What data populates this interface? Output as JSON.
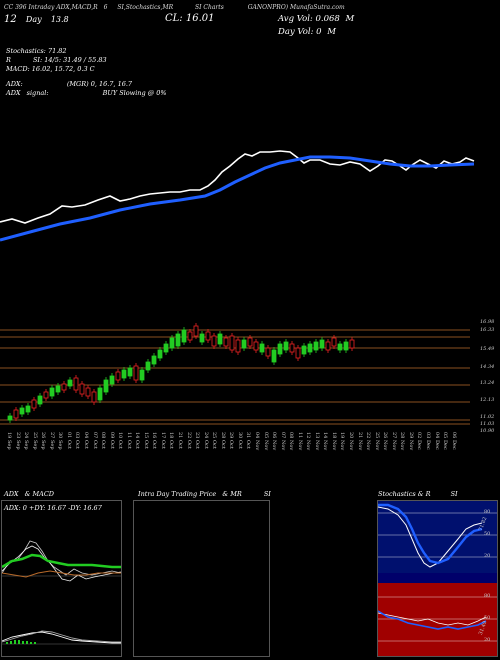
{
  "header": {
    "line1_a": "CC 396 Intraday ADX,MACD,R",
    "line1_b": "6",
    "line1_c": "SI,Stochastics,MR",
    "line1_d": "SI Charts",
    "line1_e": "GANONPRO) MunafaSutra.com",
    "price_left": "12",
    "price_left2": "Day",
    "price_left3": "13.8",
    "cl": "CL: 16.01",
    "avg_vol": "Avg Vol: 0.068",
    "avg_vol_unit": "M",
    "day_vol": "Day Vol: 0",
    "day_vol_unit": "M"
  },
  "indicators": {
    "stoch": "Stochastics: 71.82",
    "rsi_label": "R",
    "rsi_val": "SI: 14/5: 31.49 / 55.83",
    "macd": "MACD: 16.02, 15.72, 0.3 C",
    "adx_label": "ADX:",
    "adx_val": "(MGR) 0, 16.7, 16.7",
    "adx_signal_label": "ADX",
    "adx_signal": "signal:",
    "buy": "BUY Slowing @ 0%"
  },
  "price_ticks": [
    "16.98",
    "16.33",
    "15.49",
    "14.34",
    "13.24",
    "12.13",
    "11.02",
    "11.03",
    "10.90"
  ],
  "dates": [
    "19 Sep",
    "23 Sep",
    "24 Sep",
    "25 Sep",
    "26 Sep",
    "27 Sep",
    "30 Sep",
    "01 Oct",
    "03 Oct",
    "04 Oct",
    "07 Oct",
    "08 Oct",
    "09 Oct",
    "10 Oct",
    "11 Oct",
    "14 Oct",
    "15 Oct",
    "16 Oct",
    "17 Oct",
    "18 Oct",
    "21 Oct",
    "22 Oct",
    "23 Oct",
    "24 Oct",
    "25 Oct",
    "28 Oct",
    "29 Oct",
    "30 Oct",
    "31 Oct",
    "04 Nov",
    "05 Nov",
    "06 Nov",
    "07 Nov",
    "08 Nov",
    "11 Nov",
    "12 Nov",
    "13 Nov",
    "14 Nov",
    "18 Nov",
    "19 Nov",
    "20 Nov",
    "21 Nov",
    "22 Nov",
    "25 Nov",
    "26 Nov",
    "27 Nov",
    "28 Nov",
    "29 Nov",
    "02 Dec",
    "03 Dec",
    "04 Dec",
    "05 Dec",
    "06 Dec"
  ],
  "panels": {
    "adx_title": "ADX",
    "adx_title2": "& MACD",
    "adx_vals": "ADX: 0  +DY: 16.67  -DY: 16.67",
    "intra_title": "Intra Day Trading Price",
    "intra_title2": "& MR",
    "intra_title3": "SI",
    "stoch_title": "Stochastics & R",
    "stoch_title2": "SI",
    "stoch_ticks": [
      "80",
      "50",
      "20"
    ],
    "rsi_ticks": [
      "80",
      "50",
      "20"
    ],
    "stoch_val": "71.82",
    "rsi_val": "31.49"
  },
  "colors": {
    "up": "#22cc22",
    "down": "#ee2222",
    "ma": "#1f5fff",
    "hline": "#b86a2a"
  }
}
